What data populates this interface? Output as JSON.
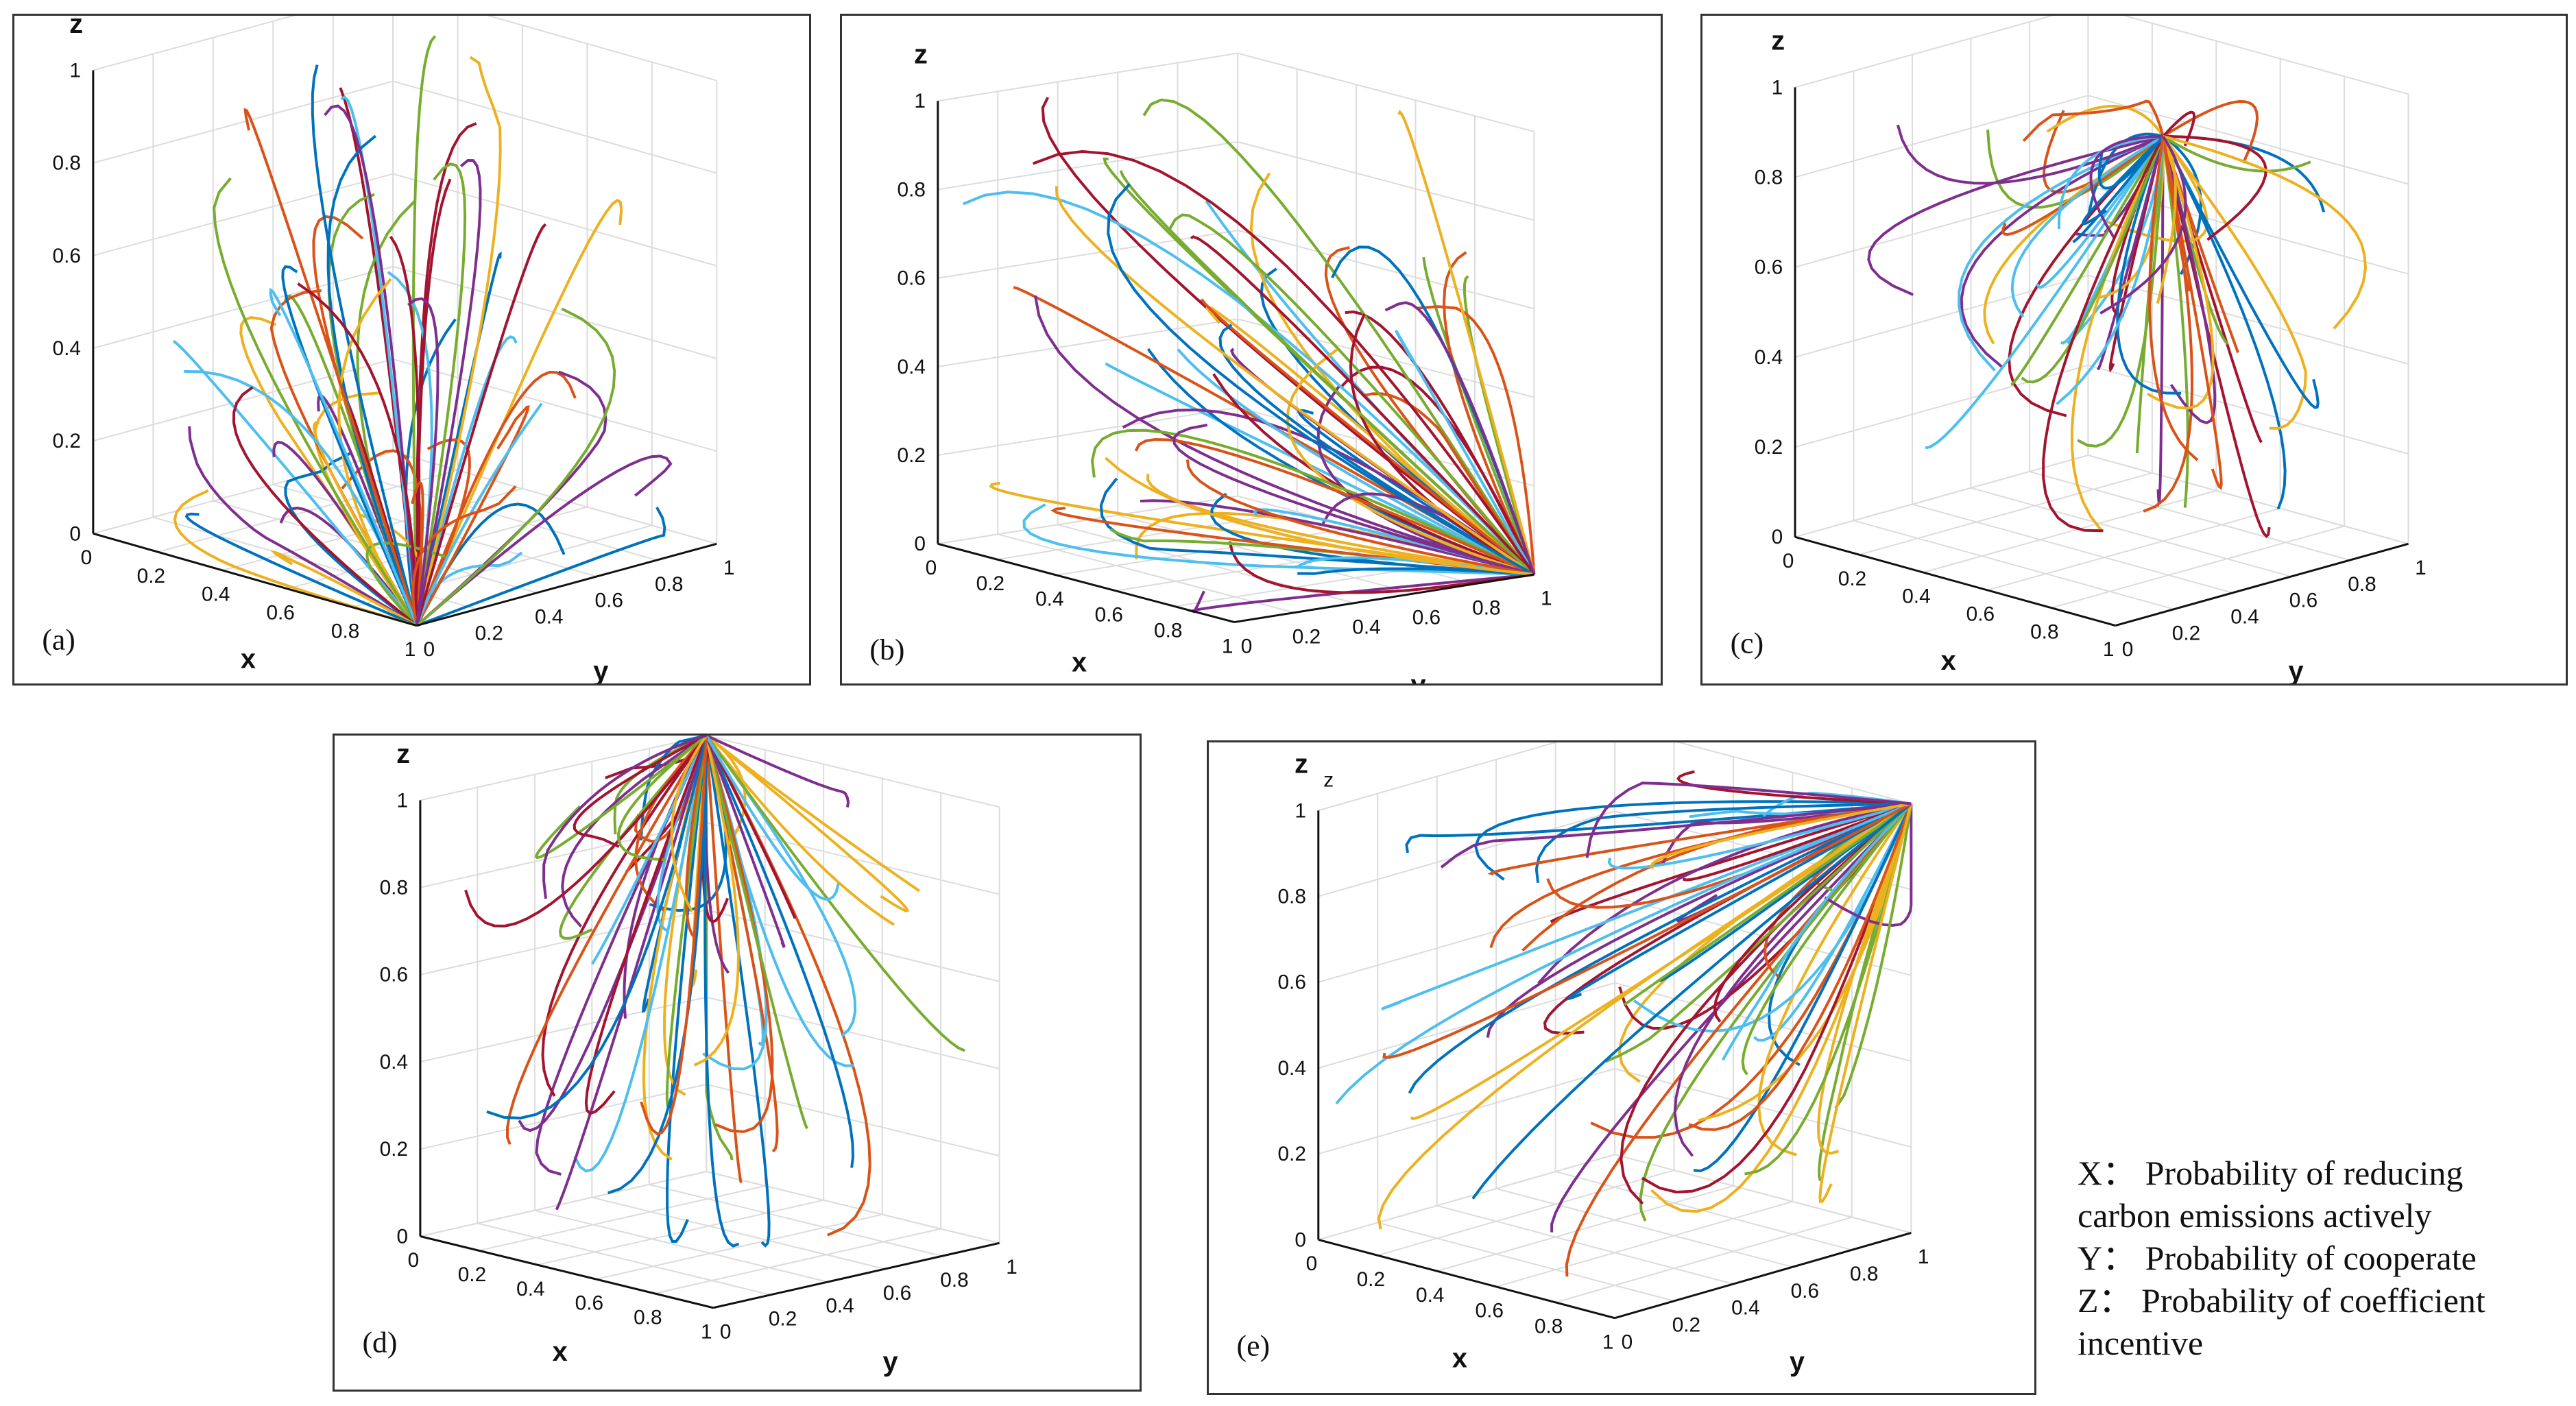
{
  "chart_data": [
    {
      "id": "a",
      "type": "line",
      "label": "(a)",
      "xlabel": "x",
      "ylabel": "y",
      "zlabel": "z",
      "x_ticks": [
        "0",
        "0.2",
        "0.4",
        "0.6",
        "0.8",
        "1"
      ],
      "y_ticks": [
        "0",
        "0.2",
        "0.4",
        "0.6",
        "0.8",
        "1"
      ],
      "z_ticks": [
        "0",
        "0.2",
        "0.4",
        "0.6",
        "0.8",
        "1"
      ],
      "xlim": [
        0,
        1
      ],
      "ylim": [
        0,
        1
      ],
      "zlim": [
        0,
        1
      ],
      "convergence_point": [
        1,
        0,
        0
      ],
      "trajectory_count": 60,
      "series_colors": [
        "#0072BD",
        "#D95319",
        "#EDB120",
        "#7E2F8E",
        "#77AC30",
        "#4DBEEE",
        "#A2142F"
      ]
    },
    {
      "id": "b",
      "type": "line",
      "label": "(b)",
      "xlabel": "x",
      "ylabel": "y",
      "zlabel": "z",
      "x_ticks": [
        "0",
        "0.2",
        "0.4",
        "0.6",
        "0.8",
        "1"
      ],
      "y_ticks": [
        "0",
        "0.2",
        "0.4",
        "0.6",
        "0.8",
        "1"
      ],
      "z_ticks": [
        "0",
        "0.2",
        "0.4",
        "0.6",
        "0.8",
        "1"
      ],
      "xlim": [
        0,
        1
      ],
      "ylim": [
        0,
        1
      ],
      "zlim": [
        0,
        1
      ],
      "convergence_point": [
        1,
        1,
        0
      ],
      "trajectory_count": 60,
      "series_colors": [
        "#0072BD",
        "#D95319",
        "#EDB120",
        "#7E2F8E",
        "#77AC30",
        "#4DBEEE",
        "#A2142F"
      ]
    },
    {
      "id": "c",
      "type": "line",
      "label": "(c)",
      "xlabel": "x",
      "ylabel": "y",
      "zlabel": "z",
      "x_ticks": [
        "0",
        "0.2",
        "0.4",
        "0.6",
        "0.8",
        "1"
      ],
      "y_ticks": [
        "0",
        "0.2",
        "0.4",
        "0.6",
        "0.8",
        "1"
      ],
      "z_ticks": [
        "0",
        "0.2",
        "0.4",
        "0.6",
        "0.8",
        "1"
      ],
      "xlim": [
        0,
        1
      ],
      "ylim": [
        0,
        1
      ],
      "zlim": [
        0,
        1
      ],
      "convergence_point": [
        0.6,
        0.6,
        0.9
      ],
      "trajectory_count": 60,
      "series_colors": [
        "#0072BD",
        "#D95319",
        "#EDB120",
        "#7E2F8E",
        "#77AC30",
        "#4DBEEE",
        "#A2142F"
      ]
    },
    {
      "id": "d",
      "type": "line",
      "label": "(d)",
      "xlabel": "x",
      "ylabel": "y",
      "zlabel": "z",
      "x_ticks": [
        "0",
        "0.2",
        "0.4",
        "0.6",
        "0.8",
        "1"
      ],
      "y_ticks": [
        "0",
        "0.2",
        "0.4",
        "0.6",
        "0.8",
        "1"
      ],
      "z_ticks": [
        "0",
        "0.2",
        "0.4",
        "0.6",
        "0.8",
        "1"
      ],
      "xlim": [
        0,
        1
      ],
      "ylim": [
        0,
        1
      ],
      "zlim": [
        0,
        1
      ],
      "convergence_point": [
        0,
        1,
        1
      ],
      "trajectory_count": 60,
      "series_colors": [
        "#0072BD",
        "#D95319",
        "#EDB120",
        "#7E2F8E",
        "#77AC30",
        "#4DBEEE",
        "#A2142F"
      ]
    },
    {
      "id": "e",
      "type": "line",
      "label": "(e)",
      "xlabel": "x",
      "ylabel": "y",
      "zlabel": "z",
      "zlabel_small": "z",
      "x_ticks": [
        "0",
        "0.2",
        "0.4",
        "0.6",
        "0.8",
        "1"
      ],
      "y_ticks": [
        "0",
        "0.2",
        "0.4",
        "0.6",
        "0.8",
        "1"
      ],
      "z_ticks": [
        "0",
        "0.2",
        "0.4",
        "0.6",
        "0.8",
        "1"
      ],
      "xlim": [
        0,
        1
      ],
      "ylim": [
        0,
        1
      ],
      "zlim": [
        0,
        1
      ],
      "convergence_point": [
        1,
        1,
        1
      ],
      "trajectory_count": 60,
      "series_colors": [
        "#0072BD",
        "#D95319",
        "#EDB120",
        "#7E2F8E",
        "#77AC30",
        "#4DBEEE",
        "#A2142F"
      ]
    }
  ],
  "legend": {
    "x": "X：  Probability of reducing",
    "x2": "carbon emissions actively",
    "y": "Y：  Probability of cooperate",
    "z": "Z：  Probability of coefficient",
    "z2": "incentive"
  }
}
